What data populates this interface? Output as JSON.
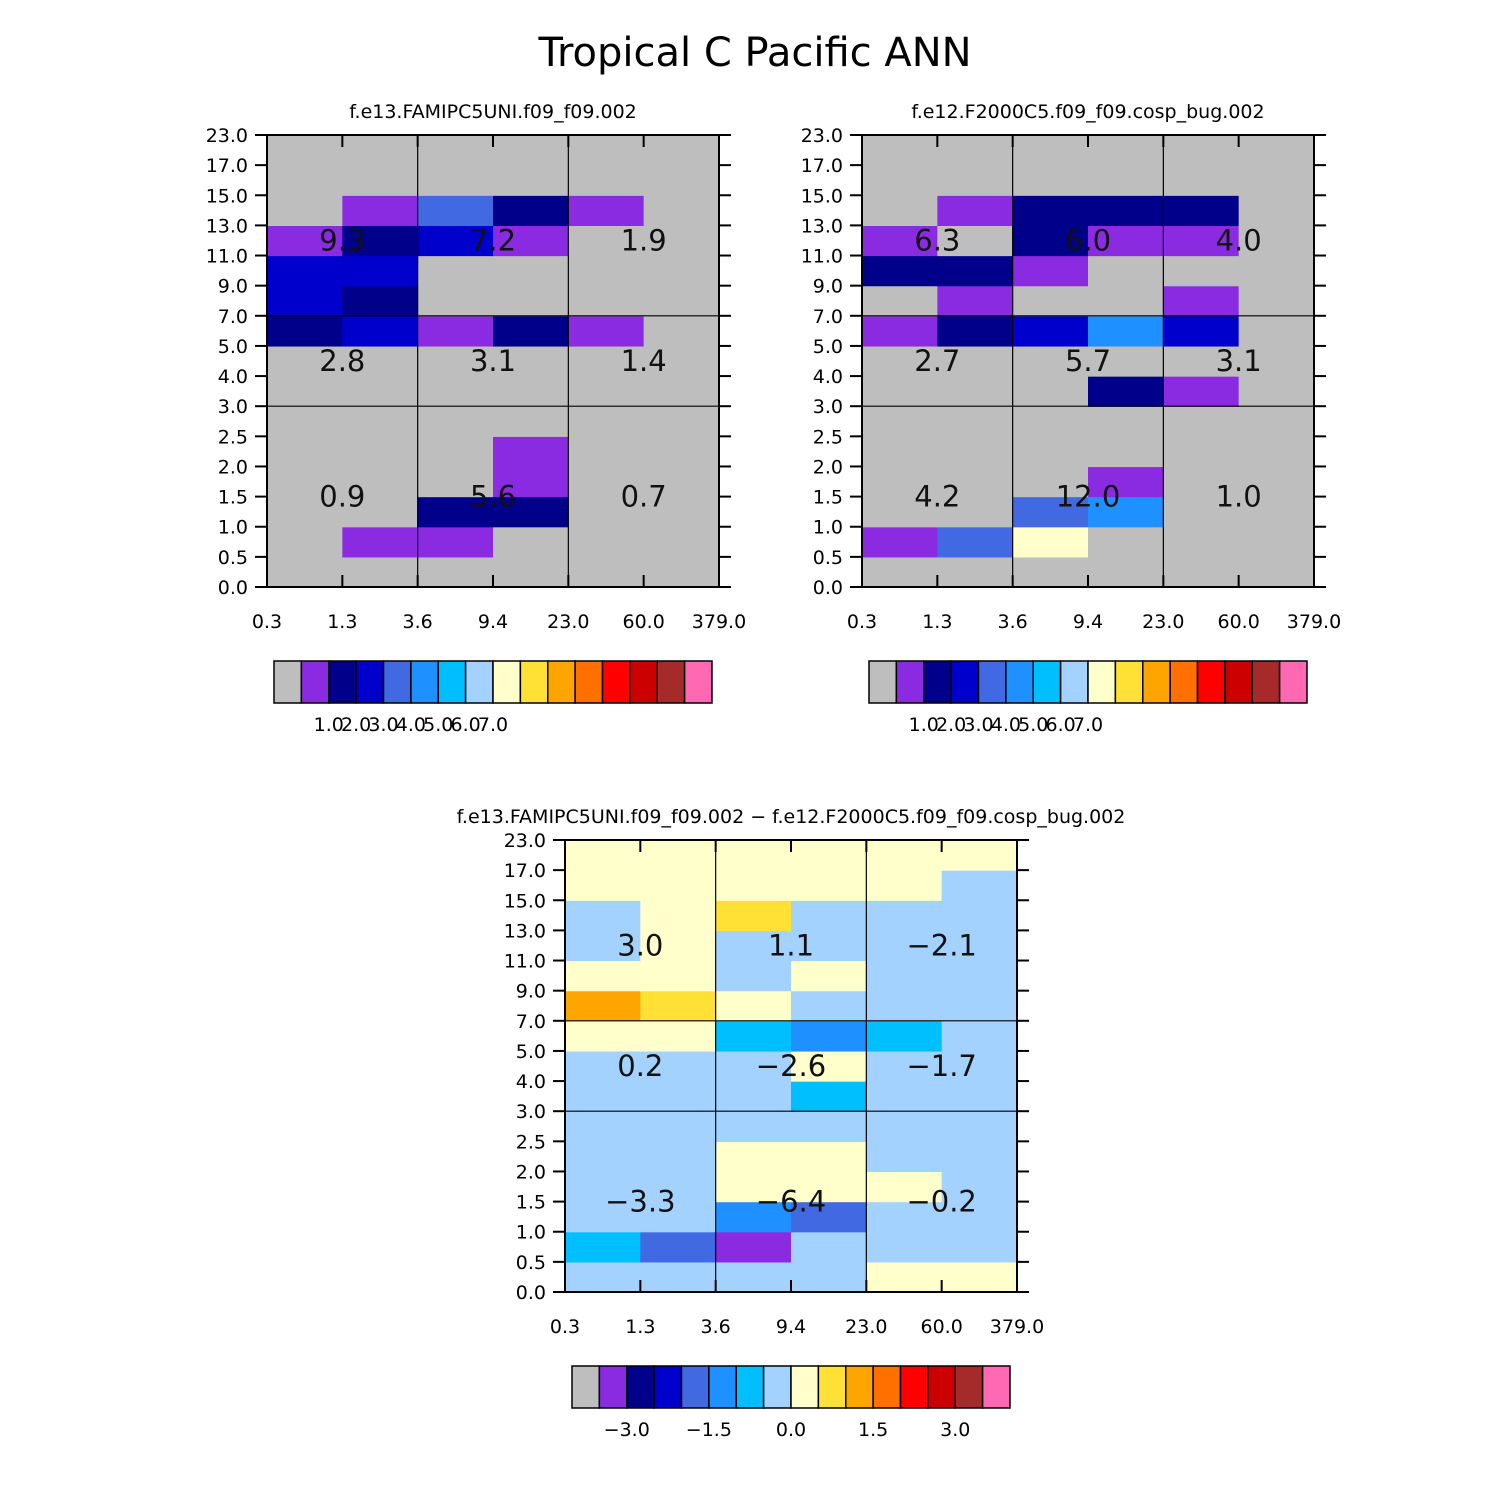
{
  "title": "Tropical C Pacific ANN",
  "chart_data": [
    {
      "type": "heatmap",
      "title": "f.e13.FAMIPC5UNI.f09_f09.002",
      "x_ticks": [
        "0.3",
        "1.3",
        "3.6",
        "9.4",
        "23.0",
        "60.0",
        "379.0"
      ],
      "y_ticks": [
        "0.0",
        "0.5",
        "1.0",
        "1.5",
        "2.0",
        "2.5",
        "3.0",
        "4.0",
        "5.0",
        "7.0",
        "9.0",
        "11.0",
        "13.0",
        "15.0",
        "17.0",
        "23.0"
      ],
      "cells": [
        [
          0,
          0,
          0,
          0,
          0,
          0
        ],
        [
          0,
          1,
          1,
          0,
          0,
          0
        ],
        [
          0,
          0,
          2,
          2,
          0,
          0
        ],
        [
          0,
          0,
          0,
          1,
          0,
          0
        ],
        [
          0,
          0,
          0,
          1,
          0,
          0
        ],
        [
          0,
          0,
          0,
          0,
          0,
          0
        ],
        [
          0,
          0,
          0,
          0,
          0,
          0
        ],
        [
          0,
          0,
          0,
          0,
          0,
          0
        ],
        [
          2,
          3,
          1,
          2,
          1,
          0
        ],
        [
          3,
          2,
          0,
          0,
          0,
          0
        ],
        [
          3,
          3,
          0,
          0,
          0,
          0
        ],
        [
          1,
          2,
          3,
          1,
          0,
          0
        ],
        [
          0,
          1,
          4,
          2,
          1,
          0
        ],
        [
          0,
          0,
          0,
          0,
          0,
          0
        ],
        [
          0,
          0,
          0,
          0,
          0,
          0
        ]
      ],
      "block_values": [
        [
          "0.9",
          "5.6",
          "0.7"
        ],
        [
          "2.8",
          "3.1",
          "1.4"
        ],
        [
          "9.3",
          "7.2",
          "1.9"
        ]
      ],
      "colorbar_labels": [
        "1.0",
        "2.0",
        "3.0",
        "4.0",
        "5.0",
        "6.0",
        "7.0"
      ]
    },
    {
      "type": "heatmap",
      "title": "f.e12.F2000C5.f09_f09.cosp_bug.002",
      "x_ticks": [
        "0.3",
        "1.3",
        "3.6",
        "9.4",
        "23.0",
        "60.0",
        "379.0"
      ],
      "y_ticks": [
        "0.0",
        "0.5",
        "1.0",
        "1.5",
        "2.0",
        "2.5",
        "3.0",
        "4.0",
        "5.0",
        "7.0",
        "9.0",
        "11.0",
        "13.0",
        "15.0",
        "17.0",
        "23.0"
      ],
      "cells": [
        [
          0,
          0,
          0,
          0,
          0,
          0
        ],
        [
          1,
          4,
          8,
          0,
          0,
          0
        ],
        [
          0,
          0,
          4,
          5,
          0,
          0
        ],
        [
          0,
          0,
          0,
          1,
          0,
          0
        ],
        [
          0,
          0,
          0,
          0,
          0,
          0
        ],
        [
          0,
          0,
          0,
          0,
          0,
          0
        ],
        [
          0,
          0,
          0,
          2,
          1,
          0
        ],
        [
          0,
          0,
          0,
          0,
          0,
          0
        ],
        [
          1,
          2,
          3,
          5,
          3,
          0
        ],
        [
          0,
          1,
          0,
          0,
          1,
          0
        ],
        [
          2,
          2,
          1,
          0,
          0,
          0
        ],
        [
          1,
          0,
          2,
          1,
          1,
          0
        ],
        [
          0,
          1,
          2,
          2,
          2,
          0
        ],
        [
          0,
          0,
          0,
          0,
          0,
          0
        ],
        [
          0,
          0,
          0,
          0,
          0,
          0
        ]
      ],
      "block_values": [
        [
          "4.2",
          "12.0",
          "1.0"
        ],
        [
          "2.7",
          "5.7",
          "3.1"
        ],
        [
          "6.3",
          "6.0",
          "4.0"
        ]
      ],
      "colorbar_labels": [
        "1.0",
        "2.0",
        "3.0",
        "4.0",
        "5.0",
        "6.0",
        "7.0"
      ]
    },
    {
      "type": "heatmap",
      "title": "f.e13.FAMIPC5UNI.f09_f09.002 − f.e12.F2000C5.f09_f09.cosp_bug.002",
      "x_ticks": [
        "0.3",
        "1.3",
        "3.6",
        "9.4",
        "23.0",
        "60.0",
        "379.0"
      ],
      "y_ticks": [
        "0.0",
        "0.5",
        "1.0",
        "1.5",
        "2.0",
        "2.5",
        "3.0",
        "4.0",
        "5.0",
        "7.0",
        "9.0",
        "11.0",
        "13.0",
        "15.0",
        "17.0",
        "23.0"
      ],
      "cells": [
        [
          7,
          7,
          7,
          7,
          8,
          8
        ],
        [
          6,
          4,
          1,
          7,
          7,
          7
        ],
        [
          7,
          7,
          5,
          4,
          7,
          7
        ],
        [
          7,
          7,
          8,
          8,
          8,
          7
        ],
        [
          7,
          7,
          8,
          8,
          7,
          7
        ],
        [
          7,
          7,
          7,
          7,
          7,
          7
        ],
        [
          7,
          7,
          7,
          6,
          7,
          7
        ],
        [
          7,
          7,
          7,
          8,
          7,
          7
        ],
        [
          8,
          8,
          6,
          5,
          6,
          7
        ],
        [
          10,
          9,
          8,
          7,
          7,
          7
        ],
        [
          8,
          8,
          7,
          8,
          7,
          7
        ],
        [
          7,
          8,
          7,
          7,
          7,
          7
        ],
        [
          7,
          8,
          9,
          7,
          7,
          7
        ],
        [
          8,
          8,
          8,
          8,
          8,
          7
        ],
        [
          8,
          8,
          8,
          8,
          8,
          8
        ]
      ],
      "block_values": [
        [
          "−3.3",
          "−6.4",
          "−0.2"
        ],
        [
          "0.2",
          "−2.6",
          "−1.7"
        ],
        [
          "3.0",
          "1.1",
          "−2.1"
        ]
      ],
      "colorbar_labels": [
        "−3.0",
        "−1.5",
        "0.0",
        "1.5",
        "3.0"
      ]
    }
  ],
  "colormap": [
    "#bebebe",
    "#8a2be2",
    "#00008b",
    "#0000cd",
    "#4169e1",
    "#1e90ff",
    "#00bfff",
    "#a3d2ff",
    "#ffffcc",
    "#ffe135",
    "#ffa500",
    "#ff7000",
    "#ff0000",
    "#cd0000",
    "#a52a2a",
    "#ff69b4"
  ]
}
